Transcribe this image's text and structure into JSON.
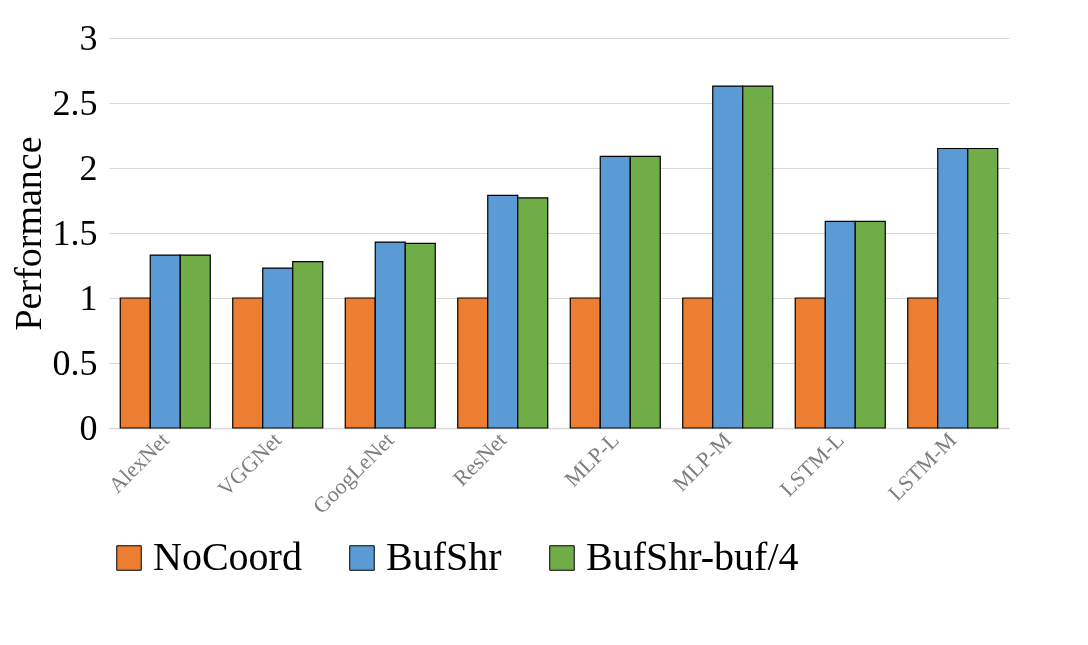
{
  "chart_data": {
    "type": "bar",
    "ylabel": "Performance",
    "categories": [
      "AlexNet",
      "VGGNet",
      "GoogLeNet",
      "ResNet",
      "MLP-L",
      "MLP-M",
      "LSTM-L",
      "LSTM-M"
    ],
    "series": [
      {
        "name": "NoCoord",
        "color": "#ed7d31",
        "values": [
          1,
          1,
          1,
          1,
          1,
          1,
          1,
          1
        ]
      },
      {
        "name": "BufShr",
        "color": "#5b9bd5",
        "values": [
          1.33,
          1.23,
          1.43,
          1.79,
          2.09,
          2.63,
          1.59,
          2.15
        ]
      },
      {
        "name": "BufShr-buf/4",
        "color": "#70ad47",
        "values": [
          1.33,
          1.28,
          1.42,
          1.77,
          2.09,
          2.63,
          1.59,
          2.15
        ]
      }
    ],
    "ylim": [
      0,
      3
    ],
    "yticks": [
      0,
      0.5,
      1,
      1.5,
      2,
      2.5,
      3
    ],
    "grid": "y",
    "legend": "bottom"
  }
}
